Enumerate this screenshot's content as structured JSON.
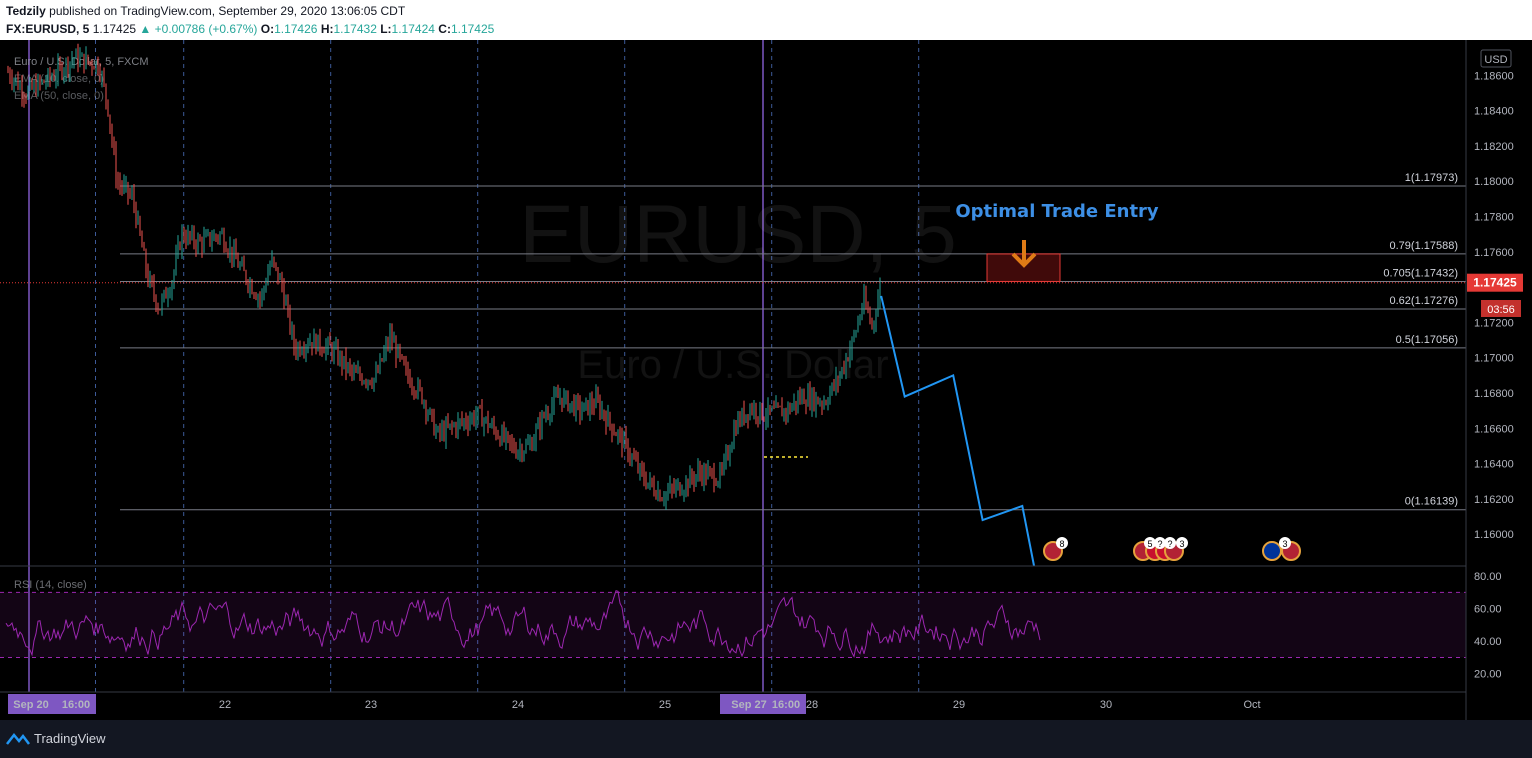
{
  "header": {
    "publisher": "Tedzily",
    "published_text": "published on TradingView.com, September 29, 2020 13:06:05 CDT",
    "symbol": "FX:EURUSD, 5",
    "last": "1.17425",
    "change": "▲ +0.00786 (+0.67%)",
    "o_label": "O:",
    "o_value": "1.17426",
    "h_label": "H:",
    "h_value": "1.17432",
    "l_label": "L:",
    "l_value": "1.17424",
    "c_label": "C:",
    "c_value": "1.17425"
  },
  "legend": {
    "title": "Euro / U.S. Dollar, 5, FXCM",
    "ema1": "EMA (10, close, 0)",
    "ema2": "EMA (50, close, 0)",
    "rsi": "RSI (14, close)"
  },
  "watermark": {
    "symbol": "EURUSD, 5",
    "name": "Euro / U.S. Dollar"
  },
  "currency_badge": "USD",
  "annotation": {
    "text": "Optimal Trade Entry",
    "color": "#3d8fe5"
  },
  "price_label": {
    "value": "1.17425",
    "countdown": "03:56",
    "color": "#e53935"
  },
  "footer": {
    "brand": "TradingView"
  },
  "colors": {
    "up": "#26a69a",
    "down": "#ef5350",
    "fib": "#787b86",
    "projection": "#2196f3",
    "rsi": "#9c27b0",
    "session_line": "#7e57c2",
    "zone": "#b71c1c"
  },
  "chart_data": {
    "type": "candlestick",
    "symbol": "EURUSD",
    "timeframe": "5",
    "x_ticks": [
      "Sep 20",
      "16:00",
      "22",
      "23",
      "24",
      "25",
      "Sep 27",
      "16:00",
      "28",
      "29",
      "30",
      "Oct"
    ],
    "y_ticks": [
      "1.18800",
      "1.18600",
      "1.18400",
      "1.18200",
      "1.18000",
      "1.17800",
      "1.17600",
      "1.17400",
      "1.17200",
      "1.17000",
      "1.16800",
      "1.16600",
      "1.16400",
      "1.16200",
      "1.16000"
    ],
    "ylim": [
      1.1582,
      1.188
    ],
    "fib_levels": [
      {
        "label": "1(1.17973)",
        "value": 1.17973
      },
      {
        "label": "0.79(1.17588)",
        "value": 1.17588
      },
      {
        "label": "0.705(1.17432)",
        "value": 1.17432
      },
      {
        "label": "0.62(1.17276)",
        "value": 1.17276
      },
      {
        "label": "0.5(1.17056)",
        "value": 1.17056
      },
      {
        "label": "0(1.16139)",
        "value": 1.16139
      }
    ],
    "price_path": [
      {
        "d": 0.0,
        "v": 1.1862
      },
      {
        "d": 0.12,
        "v": 1.185
      },
      {
        "d": 0.28,
        "v": 1.1858
      },
      {
        "d": 0.45,
        "v": 1.187
      },
      {
        "d": 0.62,
        "v": 1.1866
      },
      {
        "d": 0.68,
        "v": 1.1842
      },
      {
        "d": 0.74,
        "v": 1.18
      },
      {
        "d": 0.85,
        "v": 1.179
      },
      {
        "d": 0.95,
        "v": 1.1745
      },
      {
        "d": 1.03,
        "v": 1.1728
      },
      {
        "d": 1.12,
        "v": 1.1745
      },
      {
        "d": 1.18,
        "v": 1.177
      },
      {
        "d": 1.3,
        "v": 1.1765
      },
      {
        "d": 1.45,
        "v": 1.177
      },
      {
        "d": 1.6,
        "v": 1.1748
      },
      {
        "d": 1.72,
        "v": 1.1733
      },
      {
        "d": 1.79,
        "v": 1.1755
      },
      {
        "d": 1.86,
        "v": 1.1742
      },
      {
        "d": 1.95,
        "v": 1.1705
      },
      {
        "d": 2.05,
        "v": 1.171
      },
      {
        "d": 2.2,
        "v": 1.1705
      },
      {
        "d": 2.35,
        "v": 1.169
      },
      {
        "d": 2.5,
        "v": 1.1688
      },
      {
        "d": 2.6,
        "v": 1.1712
      },
      {
        "d": 2.7,
        "v": 1.1692
      },
      {
        "d": 2.82,
        "v": 1.1678
      },
      {
        "d": 2.92,
        "v": 1.1656
      },
      {
        "d": 3.05,
        "v": 1.1662
      },
      {
        "d": 3.2,
        "v": 1.1668
      },
      {
        "d": 3.32,
        "v": 1.1658
      },
      {
        "d": 3.45,
        "v": 1.1648
      },
      {
        "d": 3.55,
        "v": 1.165
      },
      {
        "d": 3.65,
        "v": 1.1668
      },
      {
        "d": 3.75,
        "v": 1.1678
      },
      {
        "d": 3.9,
        "v": 1.167
      },
      {
        "d": 4.0,
        "v": 1.1675
      },
      {
        "d": 4.1,
        "v": 1.1662
      },
      {
        "d": 4.2,
        "v": 1.165
      },
      {
        "d": 4.32,
        "v": 1.1632
      },
      {
        "d": 4.45,
        "v": 1.1622
      },
      {
        "d": 4.6,
        "v": 1.1628
      },
      {
        "d": 4.7,
        "v": 1.1635
      },
      {
        "d": 4.85,
        "v": 1.1632
      },
      {
        "d": 4.95,
        "v": 1.1662
      },
      {
        "d": 5.05,
        "v": 1.1672
      },
      {
        "d": 5.15,
        "v": 1.1668
      },
      {
        "d": 5.3,
        "v": 1.167
      },
      {
        "d": 5.4,
        "v": 1.1678
      },
      {
        "d": 5.55,
        "v": 1.1675
      },
      {
        "d": 5.65,
        "v": 1.1688
      },
      {
        "d": 5.75,
        "v": 1.171
      },
      {
        "d": 5.82,
        "v": 1.1732
      },
      {
        "d": 5.88,
        "v": 1.1718
      },
      {
        "d": 5.94,
        "v": 1.1742
      }
    ],
    "projection": [
      {
        "d": 5.94,
        "v": 1.1735
      },
      {
        "d": 6.1,
        "v": 1.1678
      },
      {
        "d": 6.43,
        "v": 1.169
      },
      {
        "d": 6.63,
        "v": 1.1608
      },
      {
        "d": 6.9,
        "v": 1.1616
      },
      {
        "d": 6.98,
        "v": 1.1582
      }
    ],
    "ote_zone": {
      "from": 1.17432,
      "to": 1.17588
    },
    "last_price": 1.17425,
    "rsi": {
      "name": "RSI (14, close)",
      "ylim": [
        10,
        85
      ],
      "upper_band": 70,
      "lower_band": 30,
      "ticks": [
        "80.00",
        "60.00",
        "40.00",
        "20.00"
      ]
    },
    "event_badges": [
      "8",
      "5",
      "?",
      "?",
      "3",
      "3"
    ]
  }
}
